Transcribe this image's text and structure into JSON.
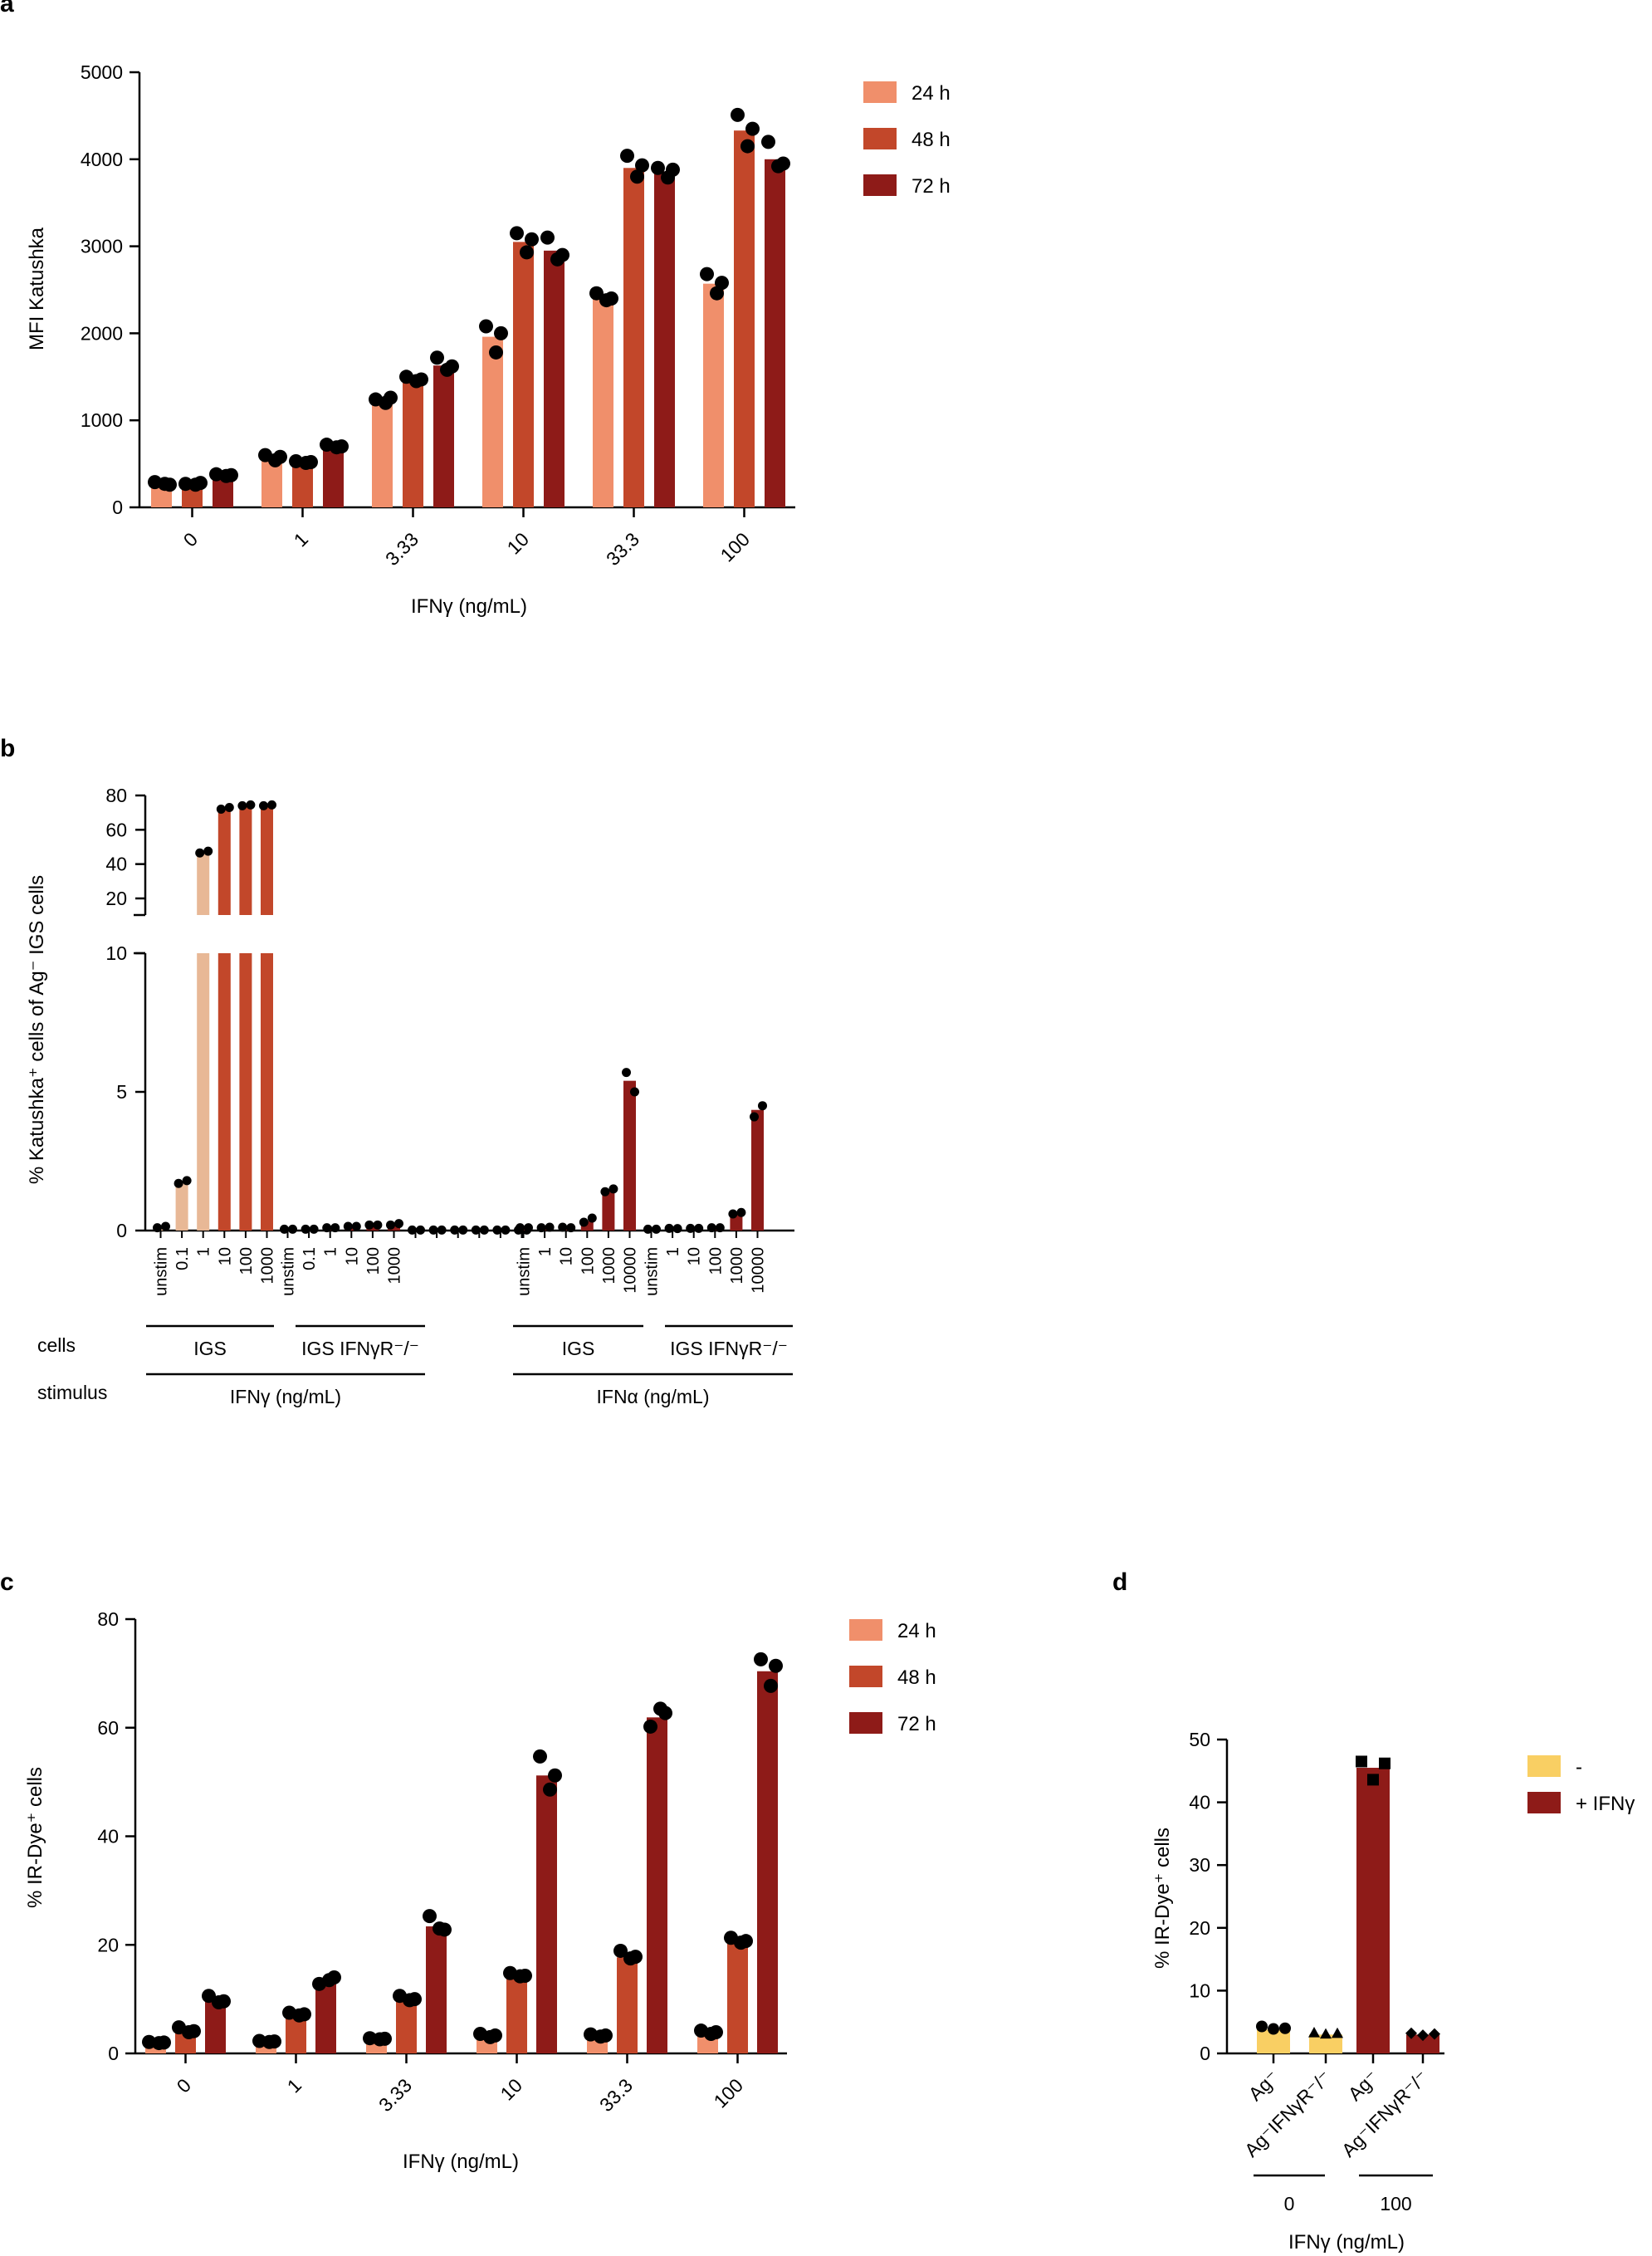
{
  "colors": {
    "h24": "#F08F6B",
    "h48": "#C2472A",
    "h72": "#8E1B18",
    "unstim": "#E8B896",
    "ifng_minus": "#F9CF63",
    "ifng_plus": "#8E1B18",
    "dot": "#000000"
  },
  "chart_data": [
    {
      "panel": "a",
      "type": "bar",
      "title": "",
      "xlabel": "IFNγ (ng/mL)",
      "ylabel": "MFI Katushka",
      "ylim": [
        0,
        5000
      ],
      "yticks": [
        0,
        1000,
        2000,
        3000,
        4000,
        5000
      ],
      "categories": [
        "0",
        "1",
        "3.33",
        "10",
        "33.3",
        "100"
      ],
      "series": [
        {
          "name": "24 h",
          "color_key": "h24",
          "values": [
            270,
            560,
            1220,
            1960,
            2400,
            2570
          ],
          "points": [
            [
              290,
              270,
              260
            ],
            [
              600,
              540,
              580
            ],
            [
              1240,
              1200,
              1260
            ],
            [
              2080,
              1780,
              2000
            ],
            [
              2460,
              2380,
              2400
            ],
            [
              2680,
              2460,
              2580
            ]
          ]
        },
        {
          "name": "48 h",
          "color_key": "h48",
          "values": [
            270,
            520,
            1470,
            3050,
            3900,
            4330
          ],
          "points": [
            [
              270,
              260,
              280
            ],
            [
              530,
              510,
              520
            ],
            [
              1500,
              1450,
              1470
            ],
            [
              3150,
              2930,
              3080
            ],
            [
              4040,
              3800,
              3930
            ],
            [
              4510,
              4150,
              4350
            ]
          ]
        },
        {
          "name": "72 h",
          "color_key": "h72",
          "values": [
            370,
            700,
            1630,
            2950,
            3860,
            4000
          ],
          "points": [
            [
              380,
              360,
              370
            ],
            [
              720,
              690,
              700
            ],
            [
              1720,
              1580,
              1620
            ],
            [
              3100,
              2850,
              2900
            ],
            [
              3900,
              3790,
              3880
            ],
            [
              4200,
              3920,
              3950
            ]
          ]
        }
      ],
      "legend": [
        "24 h",
        "48 h",
        "72 h"
      ]
    },
    {
      "panel": "b",
      "type": "bar",
      "title": "",
      "ylabel": "% Katushka⁺ cells of Ag⁻ IGS cells",
      "ylim_lower": [
        0,
        10
      ],
      "ylim_upper": [
        20,
        80
      ],
      "yticks_lower": [
        0,
        5,
        10
      ],
      "yticks_upper": [
        20,
        40,
        60,
        80
      ],
      "groups": [
        {
          "cells": "IGS",
          "color_key": "ifng",
          "categories": [
            "unstim",
            "0.1",
            "1",
            "10",
            "100",
            "1000"
          ],
          "values": [
            0.1,
            1.7,
            46,
            72,
            74,
            74
          ],
          "points": [
            [
              0.1,
              0.15
            ],
            [
              1.7,
              1.8
            ],
            [
              46.5,
              47.5
            ],
            [
              72,
              73
            ],
            [
              74,
              74.5
            ],
            [
              74,
              74.5
            ]
          ]
        },
        {
          "cells": "IGS IFNγR⁻/⁻",
          "color_key": "h72",
          "categories": [
            "unstim",
            "0.1",
            "1",
            "10",
            "100",
            "1000"
          ],
          "values": [
            0.05,
            0.05,
            0.1,
            0.15,
            0.2,
            0.25
          ],
          "points": [
            [
              0.05,
              0.05
            ],
            [
              0.05,
              0.05
            ],
            [
              0.1,
              0.1
            ],
            [
              0.15,
              0.15
            ],
            [
              0.2,
              0.2
            ],
            [
              0.2,
              0.25
            ]
          ]
        },
        {
          "cells": "",
          "color_key": "h72",
          "categories": [
            "",
            "",
            "",
            "",
            "",
            ""
          ],
          "values": [
            0.02,
            0.02,
            0.02,
            0.02,
            0.02,
            0.02
          ],
          "points": [
            [
              0.02,
              0.02
            ],
            [
              0.02,
              0.02
            ],
            [
              0.02,
              0.02
            ],
            [
              0.02,
              0.02
            ],
            [
              0.02,
              0.02
            ],
            [
              0.02,
              0.02
            ]
          ]
        },
        {
          "cells": "IGS",
          "color_key": "h72",
          "categories": [
            "unstim",
            "1",
            "10",
            "100",
            "1000",
            "10000"
          ],
          "values": [
            0.1,
            0.12,
            0.12,
            0.35,
            1.45,
            5.4
          ],
          "points": [
            [
              0.1,
              0.1
            ],
            [
              0.1,
              0.12
            ],
            [
              0.12,
              0.1
            ],
            [
              0.3,
              0.45
            ],
            [
              1.4,
              1.5
            ],
            [
              5.7,
              5.0
            ]
          ]
        },
        {
          "cells": "IGS IFNγR⁻/⁻",
          "color_key": "h72",
          "categories": [
            "unstim",
            "1",
            "10",
            "100",
            "1000",
            "10000"
          ],
          "values": [
            0.05,
            0.07,
            0.08,
            0.1,
            0.6,
            4.35
          ],
          "points": [
            [
              0.05,
              0.05
            ],
            [
              0.08,
              0.07
            ],
            [
              0.08,
              0.08
            ],
            [
              0.1,
              0.1
            ],
            [
              0.6,
              0.65
            ],
            [
              4.1,
              4.5
            ]
          ]
        }
      ],
      "row_labels": {
        "cells": "cells",
        "stimulus": "stimulus"
      },
      "stimulus": [
        "IFNγ (ng/mL)",
        "IFNα (ng/mL)"
      ]
    },
    {
      "panel": "c",
      "type": "bar",
      "title": "",
      "xlabel": "IFNγ (ng/mL)",
      "ylabel": "% IR-Dye⁺ cells",
      "ylim": [
        0,
        80
      ],
      "yticks": [
        0,
        20,
        40,
        60,
        80
      ],
      "categories": [
        "0",
        "1",
        "3.33",
        "10",
        "33.3",
        "100"
      ],
      "series": [
        {
          "name": "24 h",
          "color_key": "h24",
          "values": [
            2,
            2.2,
            2.7,
            3.3,
            3.3,
            3.9
          ],
          "points": [
            [
              2.1,
              1.9,
              2.0
            ],
            [
              2.3,
              2.1,
              2.2
            ],
            [
              2.8,
              2.6,
              2.7
            ],
            [
              3.6,
              3.0,
              3.3
            ],
            [
              3.5,
              3.1,
              3.3
            ],
            [
              4.2,
              3.6,
              3.9
            ]
          ]
        },
        {
          "name": "48 h",
          "color_key": "h48",
          "values": [
            4.2,
            7.2,
            10,
            14.3,
            17.7,
            20.6
          ],
          "points": [
            [
              4.8,
              3.9,
              4.1
            ],
            [
              7.5,
              7.0,
              7.2
            ],
            [
              10.6,
              9.8,
              10.0
            ],
            [
              14.8,
              14.2,
              14.3
            ],
            [
              18.9,
              17.5,
              17.8
            ],
            [
              21.3,
              20.4,
              20.7
            ]
          ]
        },
        {
          "name": "72 h",
          "color_key": "h72",
          "values": [
            9.8,
            13.1,
            23.4,
            51.2,
            61.9,
            70.4
          ],
          "points": [
            [
              10.6,
              9.4,
              9.6
            ],
            [
              12.8,
              13.5,
              14.0
            ],
            [
              25.3,
              23.0,
              22.8
            ],
            [
              54.7,
              48.6,
              51.2
            ],
            [
              60.2,
              63.5,
              62.7
            ],
            [
              72.6,
              67.7,
              71.4
            ]
          ]
        }
      ],
      "legend": [
        "24 h",
        "48 h",
        "72 h"
      ]
    },
    {
      "panel": "d",
      "type": "bar",
      "title": "",
      "xlabel": "IFNγ (ng/mL)",
      "ylabel": "% IR-Dye⁺ cells",
      "ylim": [
        0,
        50
      ],
      "yticks": [
        0,
        10,
        20,
        30,
        40,
        50
      ],
      "categories": [
        "Ag⁻",
        "Ag⁻IFNγR⁻/⁻",
        "Ag⁻",
        "Ag⁻IFNγR⁻/⁻"
      ],
      "dose_groups": [
        "0",
        "100"
      ],
      "series": [
        {
          "name": "-",
          "color_key": "ifng_minus"
        },
        {
          "name": "+ IFNγ",
          "color_key": "ifng_plus"
        }
      ],
      "bars": [
        {
          "category": "Ag⁻",
          "dose": "0",
          "series": "-",
          "value": 3.8,
          "points": [
            4.3,
            3.9,
            4.0
          ],
          "marker": "circle"
        },
        {
          "category": "Ag⁻IFNγR⁻/⁻",
          "dose": "0",
          "series": "-",
          "value": 3.0,
          "points": [
            3.3,
            3.1,
            3.2
          ],
          "marker": "triangle"
        },
        {
          "category": "Ag⁻",
          "dose": "100",
          "series": "+ IFNγ",
          "value": 45.5,
          "points": [
            46.5,
            43.6,
            46.2
          ],
          "marker": "square"
        },
        {
          "category": "Ag⁻IFNγR⁻/⁻",
          "dose": "100",
          "series": "+ IFNγ",
          "value": 3.0,
          "points": [
            3.2,
            2.9,
            3.1
          ],
          "marker": "diamond"
        }
      ],
      "legend": [
        "-",
        "+ IFNγ"
      ]
    }
  ]
}
